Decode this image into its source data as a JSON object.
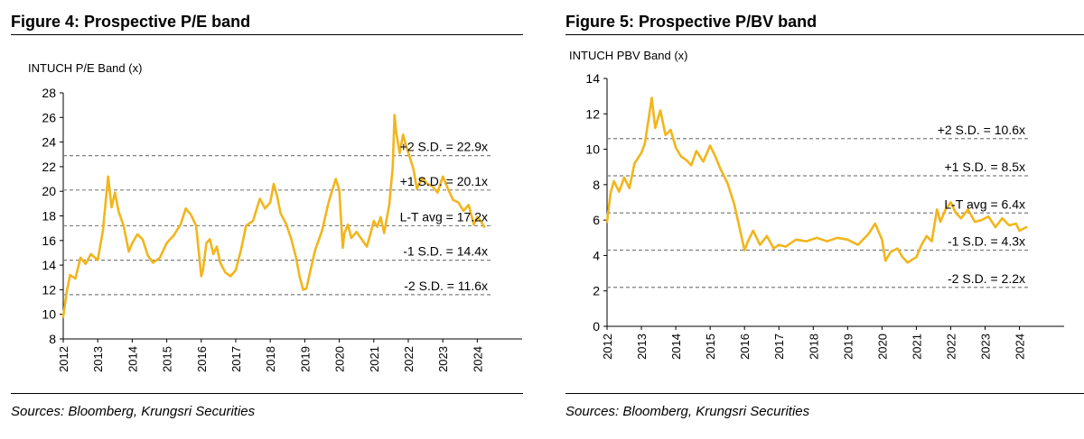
{
  "sources_text": "Sources: Bloomberg, Krungsri Securities",
  "colors": {
    "line": "#F2B51C",
    "band": "#7f7f7f",
    "text": "#000000"
  },
  "chart_data": [
    {
      "type": "line",
      "figure_title": "Figure 4: Prospective P/E band",
      "title": "INTUCH P/E Band (x)",
      "ylim": [
        8,
        28
      ],
      "yticks": [
        8,
        10,
        12,
        14,
        16,
        18,
        20,
        22,
        24,
        26,
        28
      ],
      "xlim": [
        2012,
        2025.3
      ],
      "xticks": [
        "2012",
        "2013",
        "2014",
        "2015",
        "2016",
        "2017",
        "2018",
        "2019",
        "2020",
        "2021",
        "2022",
        "2023",
        "2024"
      ],
      "grid": false,
      "bands": [
        {
          "label": "+2 S.D. = 22.9x",
          "value": 22.9
        },
        {
          "label": "+1 S.D. = 20.1x",
          "value": 20.1
        },
        {
          "label": "L-T avg = 17.2x",
          "value": 17.2
        },
        {
          "label": "-1 S.D. = 14.4x",
          "value": 14.4
        },
        {
          "label": "-2 S.D. = 11.6x",
          "value": 11.6
        }
      ],
      "series": [
        {
          "x": [
            2012.0,
            2012.1,
            2012.2,
            2012.35,
            2012.5,
            2012.65,
            2012.8,
            2013.0,
            2013.15,
            2013.3,
            2013.4,
            2013.5,
            2013.6,
            2013.75,
            2013.9,
            2014.0,
            2014.15,
            2014.3,
            2014.45,
            2014.6,
            2014.8,
            2015.0,
            2015.2,
            2015.4,
            2015.55,
            2015.7,
            2015.85,
            2016.0,
            2016.05,
            2016.15,
            2016.25,
            2016.35,
            2016.45,
            2016.55,
            2016.7,
            2016.85,
            2017.0,
            2017.15,
            2017.3,
            2017.5,
            2017.7,
            2017.85,
            2018.0,
            2018.1,
            2018.2,
            2018.3,
            2018.45,
            2018.6,
            2018.75,
            2018.85,
            2018.95,
            2019.05,
            2019.15,
            2019.3,
            2019.5,
            2019.7,
            2019.9,
            2020.0,
            2020.1,
            2020.15,
            2020.25,
            2020.35,
            2020.5,
            2020.65,
            2020.8,
            2020.95,
            2021.0,
            2021.1,
            2021.2,
            2021.3,
            2021.45,
            2021.55,
            2021.6,
            2021.65,
            2021.75,
            2021.85,
            2021.95,
            2022.05,
            2022.15,
            2022.25,
            2022.4,
            2022.55,
            2022.7,
            2022.85,
            2023.0,
            2023.15,
            2023.3,
            2023.45,
            2023.6,
            2023.75,
            2023.9,
            2024.0,
            2024.1,
            2024.2
          ],
          "values": [
            9.8,
            11.8,
            13.2,
            12.9,
            14.6,
            14.1,
            14.9,
            14.4,
            16.8,
            21.2,
            18.7,
            19.9,
            18.4,
            17.2,
            15.1,
            15.8,
            16.5,
            16.1,
            14.8,
            14.2,
            14.6,
            15.8,
            16.4,
            17.3,
            18.6,
            18.1,
            17.2,
            13.1,
            13.6,
            15.8,
            16.1,
            14.9,
            15.5,
            14.2,
            13.4,
            13.1,
            13.6,
            15.2,
            17.2,
            17.6,
            19.4,
            18.6,
            19.1,
            20.6,
            19.6,
            18.2,
            17.4,
            16.2,
            14.6,
            13.1,
            12.0,
            12.1,
            13.4,
            15.2,
            16.8,
            19.2,
            21.0,
            20.1,
            15.4,
            16.6,
            17.3,
            16.2,
            16.7,
            16.1,
            15.5,
            17.0,
            17.6,
            17.1,
            17.9,
            16.6,
            18.9,
            22.0,
            26.2,
            24.8,
            23.1,
            24.6,
            23.6,
            22.7,
            21.8,
            20.2,
            21.1,
            20.6,
            20.4,
            19.9,
            21.2,
            20.2,
            19.3,
            19.1,
            18.4,
            18.9,
            17.3,
            17.9,
            17.6,
            17.1
          ]
        }
      ]
    },
    {
      "type": "line",
      "figure_title": "Figure 5: Prospective P/BV band",
      "title": "INTUCH PBV Band (x)",
      "ylim": [
        0,
        14
      ],
      "yticks": [
        0,
        2,
        4,
        6,
        8,
        10,
        12,
        14
      ],
      "xlim": [
        2012,
        2025.3
      ],
      "xticks": [
        "2012",
        "2013",
        "2014",
        "2015",
        "2016",
        "2017",
        "2018",
        "2019",
        "2020",
        "2021",
        "2022",
        "2023",
        "2024"
      ],
      "grid": false,
      "bands": [
        {
          "label": "+2 S.D. = 10.6x",
          "value": 10.6
        },
        {
          "label": "+1 S.D. = 8.5x",
          "value": 8.5
        },
        {
          "label": "L-T avg = 6.4x",
          "value": 6.4
        },
        {
          "label": "-1 S.D. = 4.3x",
          "value": 4.3
        },
        {
          "label": "-2 S.D. = 2.2x",
          "value": 2.2
        }
      ],
      "series": [
        {
          "x": [
            2012.0,
            2012.1,
            2012.2,
            2012.35,
            2012.5,
            2012.65,
            2012.8,
            2013.0,
            2013.1,
            2013.2,
            2013.3,
            2013.4,
            2013.55,
            2013.7,
            2013.85,
            2014.0,
            2014.15,
            2014.3,
            2014.45,
            2014.6,
            2014.8,
            2015.0,
            2015.15,
            2015.3,
            2015.5,
            2015.7,
            2015.85,
            2016.0,
            2016.1,
            2016.25,
            2016.45,
            2016.65,
            2016.85,
            2017.0,
            2017.2,
            2017.5,
            2017.8,
            2018.1,
            2018.4,
            2018.7,
            2019.0,
            2019.3,
            2019.6,
            2019.8,
            2020.0,
            2020.1,
            2020.25,
            2020.45,
            2020.6,
            2020.75,
            2020.9,
            2021.0,
            2021.15,
            2021.3,
            2021.45,
            2021.6,
            2021.7,
            2021.85,
            2022.0,
            2022.15,
            2022.3,
            2022.5,
            2022.7,
            2022.9,
            2023.1,
            2023.3,
            2023.5,
            2023.7,
            2023.9,
            2024.0,
            2024.2
          ],
          "values": [
            5.9,
            7.5,
            8.2,
            7.6,
            8.4,
            7.8,
            9.2,
            9.8,
            10.3,
            11.6,
            12.9,
            11.2,
            12.2,
            10.8,
            11.1,
            10.1,
            9.6,
            9.4,
            9.1,
            9.9,
            9.3,
            10.2,
            9.6,
            8.9,
            8.1,
            6.9,
            5.6,
            4.3,
            4.8,
            5.4,
            4.6,
            5.1,
            4.4,
            4.6,
            4.5,
            4.9,
            4.8,
            5.0,
            4.8,
            5.0,
            4.9,
            4.6,
            5.2,
            5.8,
            4.9,
            3.7,
            4.2,
            4.4,
            3.9,
            3.6,
            3.8,
            3.9,
            4.6,
            5.1,
            4.8,
            6.6,
            5.9,
            6.6,
            7.0,
            6.4,
            6.1,
            6.6,
            5.9,
            6.0,
            6.2,
            5.6,
            6.1,
            5.7,
            5.8,
            5.4,
            5.6
          ]
        }
      ]
    }
  ]
}
